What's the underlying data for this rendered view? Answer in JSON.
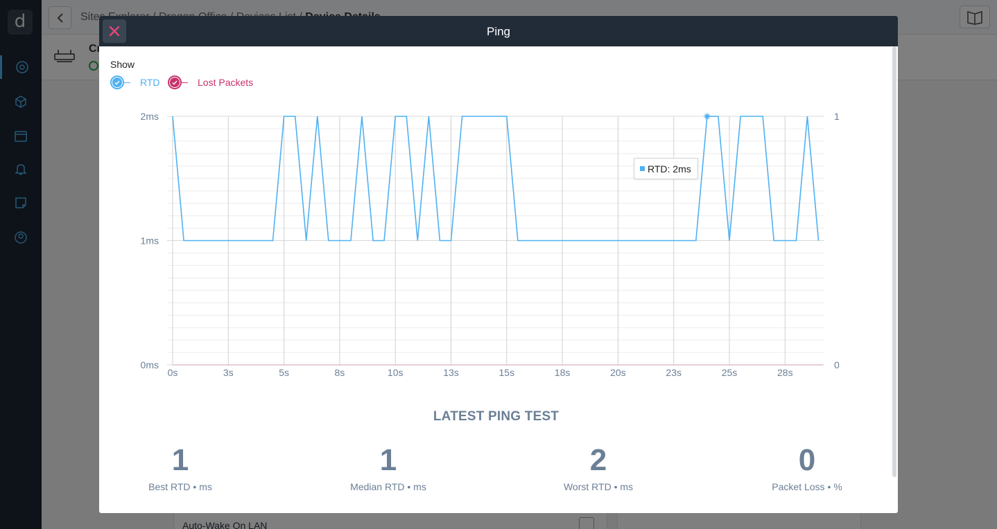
{
  "app": {
    "logo_glyph": "d",
    "breadcrumb": [
      "Sites Explorer",
      "Dragon Office",
      "Devices List",
      "Device Details"
    ],
    "device_name": "Cr",
    "settings_row_label": "Auto-Wake On LAN"
  },
  "sidebar": {
    "items": [
      {
        "icon": "globe-icon",
        "active": true
      },
      {
        "icon": "cube-icon",
        "active": false
      },
      {
        "icon": "dashboard-icon",
        "active": false
      },
      {
        "icon": "bell-icon",
        "active": false
      },
      {
        "icon": "note-icon",
        "active": false
      },
      {
        "icon": "user-icon",
        "active": false
      }
    ]
  },
  "modal": {
    "title": "Ping",
    "close_glyph": "✕",
    "show_label": "Show",
    "legend": [
      {
        "label": "RTD",
        "color": "#4fb1f2",
        "checked": true
      },
      {
        "label": "Lost Packets",
        "color": "#c8336c",
        "checked": true
      }
    ],
    "tooltip": {
      "label": "RTD: 2ms"
    },
    "section_title": "LATEST PING TEST",
    "stats": [
      {
        "value": "1",
        "label": "Best RTD • ms"
      },
      {
        "value": "1",
        "label": "Median RTD • ms"
      },
      {
        "value": "2",
        "label": "Worst RTD • ms"
      },
      {
        "value": "0",
        "label": "Packet Loss • %"
      }
    ]
  },
  "chart_data": {
    "type": "line",
    "x_tick_labels": [
      "0s",
      "3s",
      "5s",
      "8s",
      "10s",
      "13s",
      "15s",
      "18s",
      "20s",
      "23s",
      "25s",
      "28s"
    ],
    "y_tick_labels": [
      "2ms",
      "1ms",
      "0ms"
    ],
    "y2_tick_labels": [
      "1",
      "0"
    ],
    "xlim": [
      0,
      29.2
    ],
    "ylim": [
      0,
      2
    ],
    "y2lim": [
      0,
      1
    ],
    "grid": true,
    "series": [
      {
        "name": "RTD",
        "color": "#4fb1f2",
        "axis": "left",
        "points": [
          [
            0,
            2
          ],
          [
            0.5,
            1
          ],
          [
            4.5,
            1
          ],
          [
            5,
            2
          ],
          [
            5.5,
            2
          ],
          [
            6,
            1
          ],
          [
            6.5,
            2
          ],
          [
            7,
            1
          ],
          [
            8,
            1
          ],
          [
            8.5,
            2
          ],
          [
            9,
            1
          ],
          [
            9.5,
            1
          ],
          [
            10,
            2
          ],
          [
            10.5,
            2
          ],
          [
            11,
            1
          ],
          [
            11.5,
            2
          ],
          [
            12,
            1
          ],
          [
            12.5,
            1
          ],
          [
            13,
            2
          ],
          [
            15,
            2
          ],
          [
            15.5,
            1
          ],
          [
            23.5,
            1
          ],
          [
            24,
            2
          ],
          [
            24.5,
            2
          ],
          [
            25,
            1
          ],
          [
            25.5,
            2
          ],
          [
            26.5,
            2
          ],
          [
            27,
            1
          ],
          [
            28,
            1
          ],
          [
            28.5,
            2
          ],
          [
            29,
            1
          ]
        ]
      },
      {
        "name": "Lost Packets",
        "color": "#c8336c",
        "axis": "right",
        "points": [
          [
            0,
            0
          ],
          [
            29.2,
            0
          ]
        ]
      }
    ],
    "highlight_point": [
      24,
      2
    ]
  }
}
